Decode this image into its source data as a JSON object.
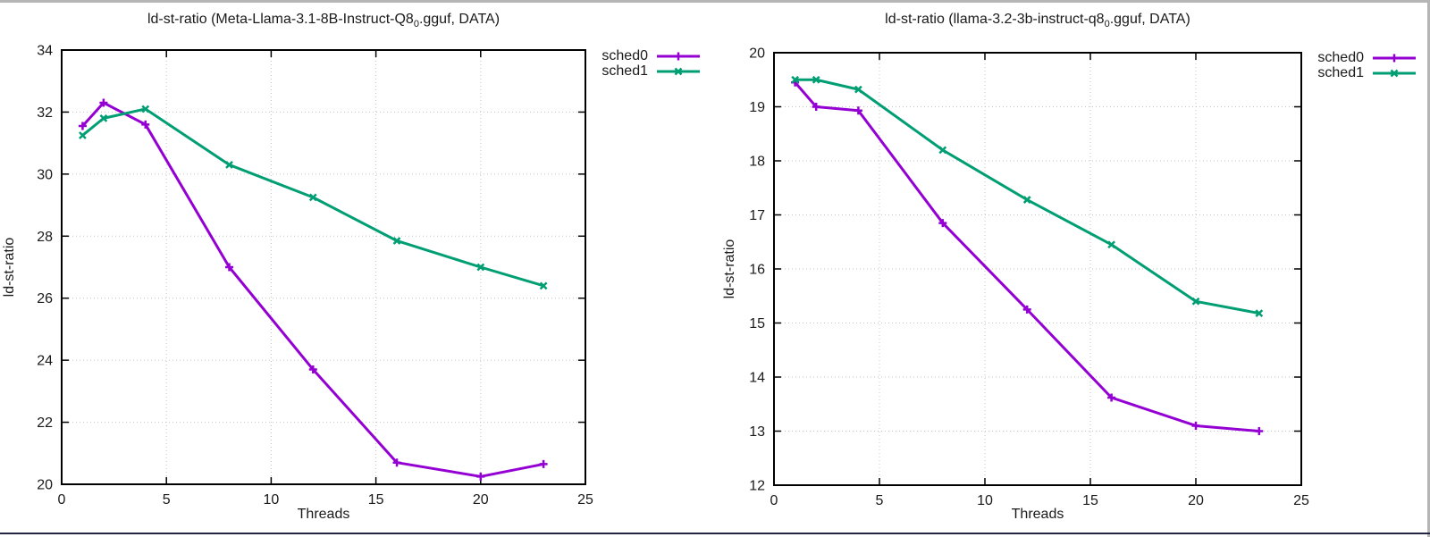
{
  "window": {
    "background": "#ffffff",
    "frame_top_color": "#b5b5b5",
    "frame_right_color": "#b5b5b5",
    "frame_bottom_color": "#242445"
  },
  "chart_data": [
    {
      "type": "line",
      "title": "ld-st-ratio (Meta-Llama-3.1-8B-Instruct-Q8_0.gguf, DATA)",
      "title_prefix": "ld-st-ratio (Meta-Llama-3.1-8B-Instruct-Q8",
      "title_sub": "0",
      "title_suffix": ".gguf, DATA)",
      "xlabel": "Threads",
      "ylabel": "ld-st-ratio",
      "xlim": [
        0,
        25
      ],
      "ylim": [
        20,
        34
      ],
      "x_ticks": [
        0,
        5,
        10,
        15,
        20,
        25
      ],
      "y_ticks": [
        20,
        22,
        24,
        26,
        28,
        30,
        32,
        34
      ],
      "grid": true,
      "legend_position": "outside-top-right",
      "x": [
        1,
        2,
        4,
        8,
        12,
        16,
        20,
        23
      ],
      "series": [
        {
          "name": "sched0",
          "color": "#9400d3",
          "marker": "plus",
          "values": [
            31.55,
            32.3,
            31.6,
            27.0,
            23.7,
            20.7,
            20.25,
            20.65
          ]
        },
        {
          "name": "sched1",
          "color": "#009e73",
          "marker": "cross",
          "values": [
            31.25,
            31.8,
            32.1,
            30.3,
            29.25,
            27.85,
            27.0,
            26.4
          ]
        }
      ]
    },
    {
      "type": "line",
      "title": "ld-st-ratio (llama-3.2-3b-instruct-q8_0.gguf, DATA)",
      "title_prefix": "ld-st-ratio (llama-3.2-3b-instruct-q8",
      "title_sub": "0",
      "title_suffix": ".gguf, DATA)",
      "xlabel": "Threads",
      "ylabel": "ld-st-ratio",
      "xlim": [
        0,
        25
      ],
      "ylim": [
        12,
        20
      ],
      "x_ticks": [
        0,
        5,
        10,
        15,
        20,
        25
      ],
      "y_ticks": [
        12,
        13,
        14,
        15,
        16,
        17,
        18,
        19,
        20
      ],
      "grid": true,
      "legend_position": "outside-top-right",
      "x": [
        1,
        2,
        4,
        8,
        12,
        16,
        20,
        23
      ],
      "series": [
        {
          "name": "sched0",
          "color": "#9400d3",
          "marker": "plus",
          "values": [
            19.45,
            19.0,
            18.93,
            16.85,
            15.25,
            13.62,
            13.1,
            13.0
          ]
        },
        {
          "name": "sched1",
          "color": "#009e73",
          "marker": "cross",
          "values": [
            19.5,
            19.5,
            19.32,
            18.2,
            17.28,
            16.45,
            15.4,
            15.18
          ]
        }
      ]
    }
  ]
}
